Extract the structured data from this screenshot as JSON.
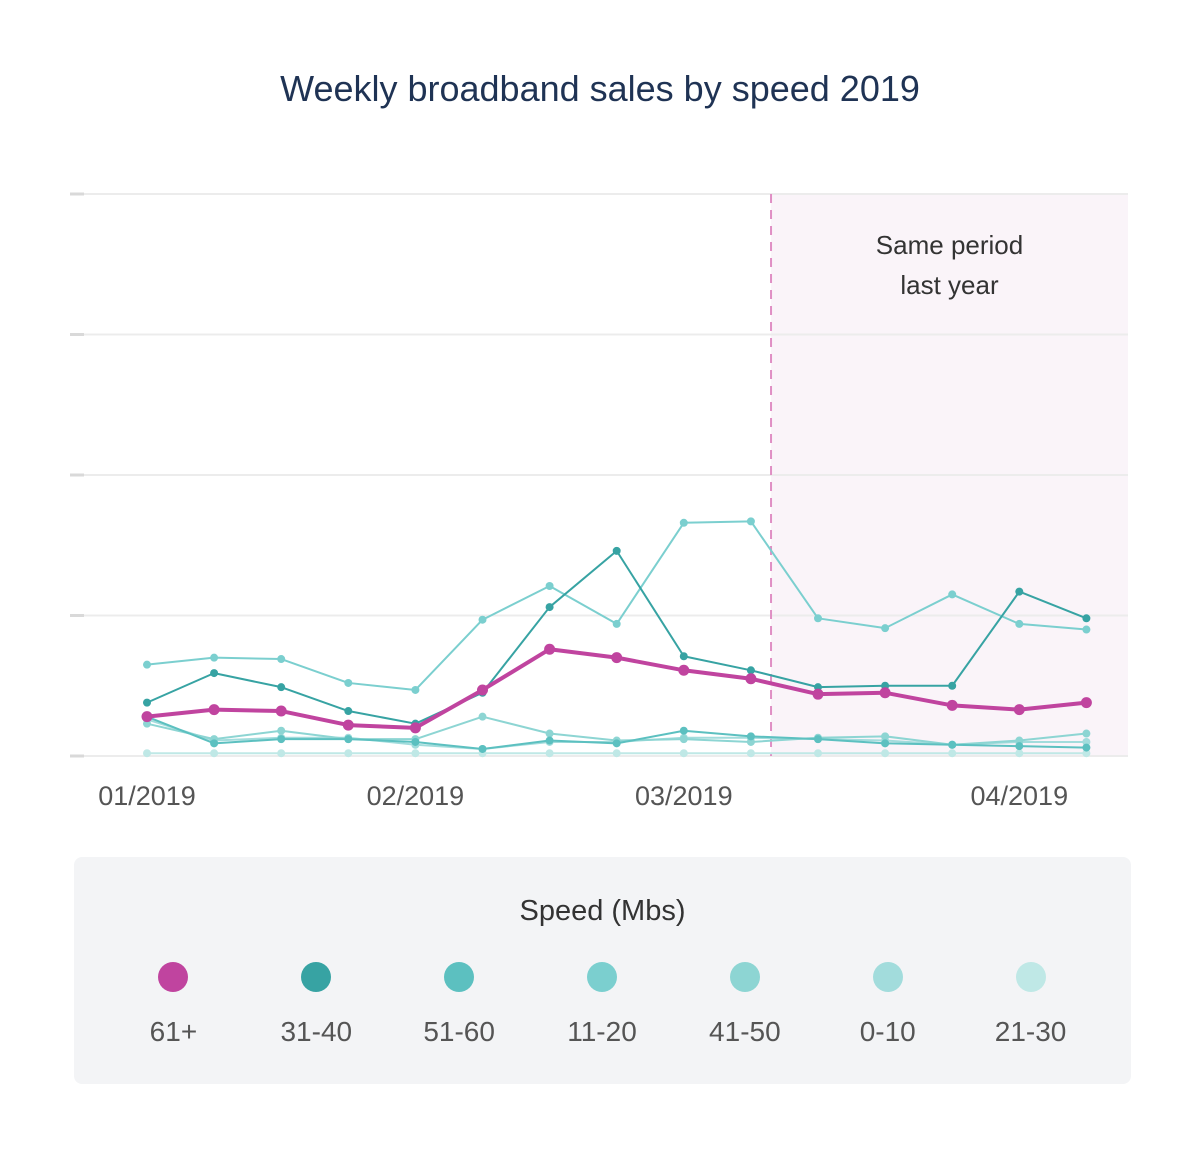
{
  "title": "Weekly broadband sales by speed 2019",
  "chart_data": {
    "type": "line",
    "title": "Weekly broadband sales by speed 2019",
    "xlabel": "",
    "ylabel": "",
    "ylim": [
      0,
      4
    ],
    "grid": true,
    "x_tick_labels": [
      "01/2019",
      "02/2019",
      "03/2019",
      "04/2019"
    ],
    "x_tick_positions": [
      0,
      4,
      8,
      13
    ],
    "num_weeks": 15,
    "shaded_region": {
      "from_week": 9.3,
      "to_week": 14.6,
      "label_line1": "Same period",
      "label_line2": "last year",
      "color": "#faf4f9",
      "line_color": "#e08fc4"
    },
    "series": [
      {
        "name": "61+",
        "color": "#c0449f",
        "emphasis": true,
        "values": [
          0.28,
          0.33,
          0.32,
          0.22,
          0.2,
          0.47,
          0.76,
          0.7,
          0.61,
          0.55,
          0.44,
          0.45,
          0.36,
          0.33,
          0.38
        ]
      },
      {
        "name": "31-40",
        "color": "#37a3a3",
        "values": [
          0.38,
          0.59,
          0.49,
          0.32,
          0.23,
          0.45,
          1.06,
          1.46,
          0.71,
          0.61,
          0.49,
          0.5,
          0.5,
          1.17,
          0.98
        ]
      },
      {
        "name": "51-60",
        "color": "#5cc0c0",
        "values": [
          0.28,
          0.09,
          0.12,
          0.12,
          0.1,
          0.05,
          0.11,
          0.09,
          0.18,
          0.14,
          0.12,
          0.09,
          0.08,
          0.07,
          0.06
        ]
      },
      {
        "name": "11-20",
        "color": "#7bcfcf",
        "values": [
          0.65,
          0.7,
          0.69,
          0.52,
          0.47,
          0.97,
          1.21,
          0.94,
          1.66,
          1.67,
          0.98,
          0.91,
          1.15,
          0.94,
          0.9
        ]
      },
      {
        "name": "41-50",
        "color": "#8dd5d3",
        "values": [
          0.23,
          0.12,
          0.18,
          0.12,
          0.12,
          0.28,
          0.16,
          0.11,
          0.12,
          0.1,
          0.13,
          0.14,
          0.08,
          0.11,
          0.16
        ]
      },
      {
        "name": "0-10",
        "color": "#a2dcdc",
        "values": [
          0.26,
          0.11,
          0.13,
          0.13,
          0.08,
          0.05,
          0.1,
          0.1,
          0.13,
          0.13,
          0.12,
          0.11,
          0.08,
          0.1,
          0.1
        ]
      },
      {
        "name": "21-30",
        "color": "#bfe8e6",
        "values": [
          0.02,
          0.02,
          0.02,
          0.02,
          0.02,
          0.02,
          0.02,
          0.02,
          0.02,
          0.02,
          0.02,
          0.02,
          0.02,
          0.02,
          0.02
        ]
      }
    ]
  },
  "legend": {
    "title": "Speed (Mbs)",
    "items": [
      {
        "label": "61+",
        "color": "#c0449f"
      },
      {
        "label": "31-40",
        "color": "#37a3a3"
      },
      {
        "label": "51-60",
        "color": "#5cc0c0"
      },
      {
        "label": "11-20",
        "color": "#7bcfcf"
      },
      {
        "label": "41-50",
        "color": "#8dd5d3"
      },
      {
        "label": "0-10",
        "color": "#a2dcdc"
      },
      {
        "label": "21-30",
        "color": "#bfe8e6"
      }
    ]
  }
}
